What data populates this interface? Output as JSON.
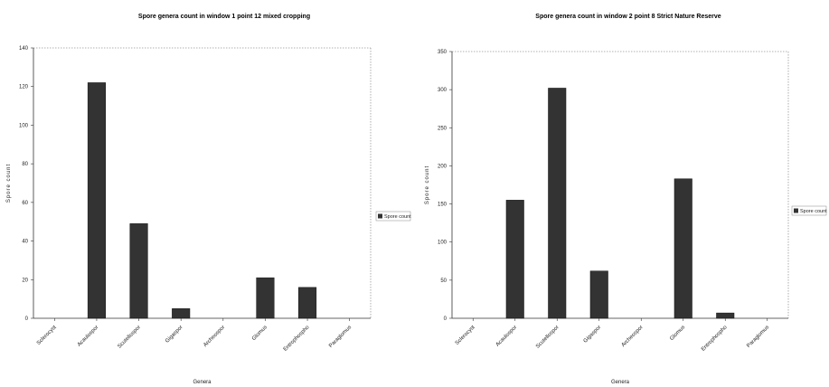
{
  "chart_data": [
    {
      "type": "bar",
      "title": "Spore genera count in window 1 point 12 mixed cropping",
      "xlabel": "Genera",
      "ylabel": "Spore count",
      "categories": [
        "Sclerocyst",
        "Acaulospor",
        "Scutellospor",
        "Gigaspor",
        "Archeospor",
        "Glomus",
        "Entrophospho",
        "Paraglomus"
      ],
      "series": [
        {
          "name": "Spore count",
          "values": [
            0,
            122,
            49,
            5,
            0,
            21,
            16,
            0
          ]
        }
      ],
      "ylim": [
        0,
        140
      ],
      "yticks": [
        "0",
        "20",
        "40",
        "60",
        "80",
        "100",
        "120",
        "140"
      ],
      "legend": "right",
      "grid": false,
      "bar_color": "#333333"
    },
    {
      "type": "bar",
      "title": "Spore genera count in window 2 point 8 Strict Nature Reserve",
      "xlabel": "Genera",
      "ylabel": "Spore count",
      "categories": [
        "Sclerocyst",
        "Acaulospor",
        "Scutellospor",
        "Gigaspor",
        "Archeospor",
        "Glomus",
        "Entrophospho",
        "Paraglomus"
      ],
      "series": [
        {
          "name": "Spore count",
          "values": [
            0,
            155,
            302,
            62,
            0,
            183,
            7,
            0
          ]
        }
      ],
      "ylim": [
        0,
        350
      ],
      "yticks": [
        "0",
        "50",
        "100",
        "150",
        "200",
        "250",
        "300",
        "350"
      ],
      "legend": "right",
      "grid": false,
      "bar_color": "#333333"
    }
  ]
}
